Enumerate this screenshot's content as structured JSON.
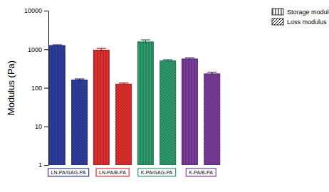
{
  "chart_data": {
    "type": "bar",
    "y_label": "Modulus (Pa)",
    "categories": [
      "LN-PA/GAG-PA",
      "LN-PA/B-PA",
      "K-PA/GAG-PA",
      "K-PA/B-PA"
    ],
    "series": [
      {
        "name": "Storage modulus",
        "colors": [
          "#2f3f9f",
          "#e3302f",
          "#2f9e6e",
          "#7c3d9c"
        ],
        "values": [
          1250,
          950,
          1550,
          560
        ],
        "errors": [
          50,
          100,
          200,
          40
        ]
      },
      {
        "name": "Loss modulus",
        "colors": [
          "#2f3f9f",
          "#e3302f",
          "#2f9e6e",
          "#7c3d9c"
        ],
        "values": [
          160,
          125,
          500,
          230
        ],
        "errors": [
          10,
          8,
          35,
          25
        ]
      }
    ],
    "ylim": [
      1,
      10000
    ],
    "yticks": [
      1,
      10,
      100,
      1000,
      10000
    ],
    "log": "y",
    "grid": false,
    "legend": "top-right"
  }
}
